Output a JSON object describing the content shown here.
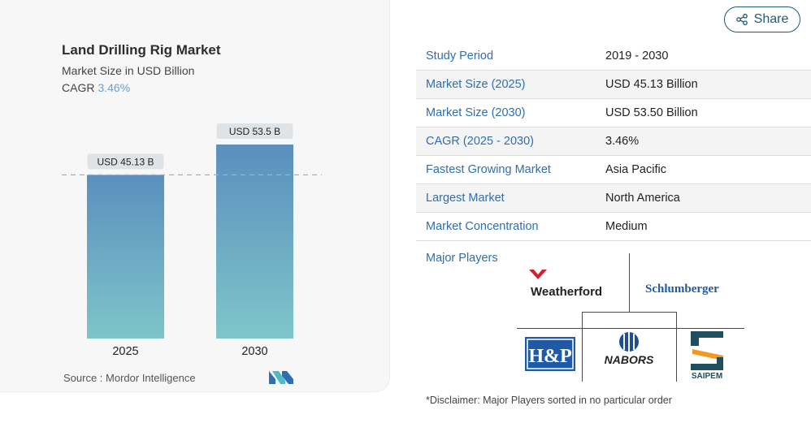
{
  "title": "Land Drilling Rig Market",
  "subtitle": "Market Size in USD Billion",
  "cagr_label": "CAGR",
  "cagr_value": "3.46%",
  "source": "Source : Mordor Intelligence",
  "share_label": "Share",
  "chart_data": {
    "type": "bar",
    "categories": [
      "2025",
      "2030"
    ],
    "values": [
      45.13,
      53.5
    ],
    "data_labels": [
      "USD 45.13 B",
      "USD 53.5 B"
    ],
    "unit": "USD Billion",
    "ylim": [
      0,
      53.5
    ],
    "grid": false,
    "reference_line_at": 45.13,
    "colors": {
      "bar_top": "#5b8fbe",
      "bar_bottom": "#7ec5c9",
      "label_bg": "#dfe3e6",
      "ref_line": "#8fb7cc"
    }
  },
  "table": [
    {
      "key": "Study Period",
      "value": "2019 - 2030"
    },
    {
      "key": "Market Size (2025)",
      "value": "USD 45.13 Billion"
    },
    {
      "key": "Market Size (2030)",
      "value": "USD 53.50 Billion"
    },
    {
      "key": "CAGR (2025 - 2030)",
      "value": "3.46%"
    },
    {
      "key": "Fastest Growing Market",
      "value": "Asia Pacific"
    },
    {
      "key": "Largest Market",
      "value": "North America"
    },
    {
      "key": "Market Concentration",
      "value": "Medium"
    }
  ],
  "major_players_label": "Major Players",
  "players": [
    "Weatherford",
    "Schlumberger",
    "H&P",
    "NABORS",
    "SAIPEM"
  ],
  "disclaimer": "*Disclaimer: Major Players sorted in no particular order"
}
